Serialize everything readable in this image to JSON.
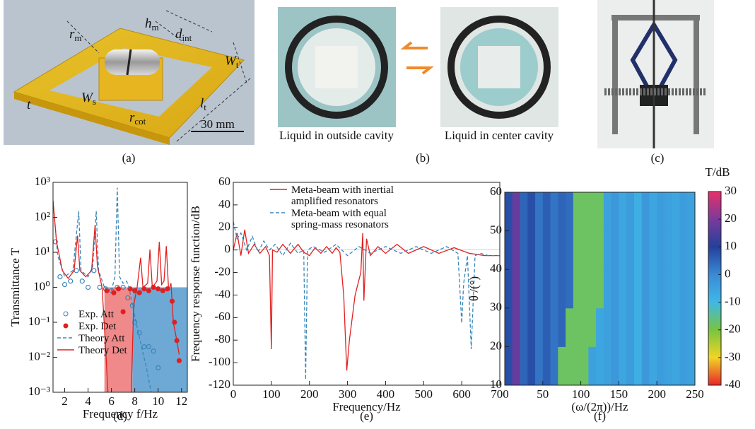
{
  "panels": {
    "a": {
      "caption": "(a)",
      "scale": "30 mm",
      "labels": [
        {
          "text": "r",
          "sub": "m"
        },
        {
          "text": "h",
          "sub": "m"
        },
        {
          "text": "d",
          "sub": "int"
        },
        {
          "text": "W",
          "sub": "t"
        },
        {
          "text": "t",
          "sub": ""
        },
        {
          "text": "W",
          "sub": "s"
        },
        {
          "text": "r",
          "sub": "cot"
        },
        {
          "text": "l",
          "sub": "t"
        }
      ]
    },
    "b": {
      "caption": "(b)",
      "labels": [
        "Liquid in outside cavity",
        "Liquid in center cavity"
      ]
    },
    "c": {
      "caption": "(c)"
    }
  },
  "chart_data": [
    {
      "type": "line",
      "caption": "(d)",
      "xlabel": "Frequency f/Hz",
      "ylabel": "Transmittance T",
      "log_y": true,
      "xlim": [
        1,
        12.5
      ],
      "xticks": [
        2,
        4,
        6,
        8,
        10,
        12
      ],
      "ylim": [
        0.001,
        1000
      ],
      "yticks": [
        {
          "value": 0.001,
          "label": "10⁻³"
        },
        {
          "value": 0.01,
          "label": "10⁻²"
        },
        {
          "value": 0.1,
          "label": "10⁻¹"
        },
        {
          "value": 1,
          "label": "10⁰"
        },
        {
          "value": 10,
          "label": "10¹"
        },
        {
          "value": 100,
          "label": "10²"
        },
        {
          "value": 1000,
          "label": "10³"
        }
      ],
      "legend": "lower left",
      "bands": [
        {
          "color": "#f08a8a",
          "x": [
            5.4,
            7.8
          ],
          "y": [
            0.001,
            1
          ]
        },
        {
          "color": "#6ea9d6",
          "x": [
            7.8,
            12.5
          ],
          "y": [
            0.001,
            1
          ]
        }
      ],
      "series": [
        {
          "name": "Exp. Att",
          "color": "#3a86b8",
          "style": "open-circle",
          "x": [
            1.2,
            1.6,
            2.0,
            2.5,
            3.0,
            3.5,
            4.0,
            4.5,
            5.0,
            5.5,
            6.0,
            6.5,
            7.0,
            7.4,
            7.8,
            8.0,
            8.4,
            8.8,
            9.2,
            9.6,
            10.0
          ],
          "values": [
            20,
            2,
            1.2,
            1.5,
            3,
            1.5,
            1,
            3,
            1,
            0.9,
            0.8,
            1,
            1,
            0.5,
            0.3,
            0.1,
            0.05,
            0.02,
            0.02,
            0.015,
            0.005
          ]
        },
        {
          "name": "Exp. Det",
          "color": "#e02020",
          "style": "filled-circle",
          "x": [
            5.6,
            6.2,
            6.6,
            7.0,
            7.6,
            8.0,
            8.4,
            8.8,
            9.2,
            9.6,
            10.0,
            10.4,
            10.8,
            11.2,
            11.4,
            11.6,
            11.8
          ],
          "values": [
            0.8,
            0.7,
            0.9,
            0.2,
            0.9,
            0.8,
            0.7,
            0.9,
            0.8,
            1,
            0.9,
            0.8,
            0.9,
            0.4,
            0.1,
            0.03,
            0.008
          ]
        },
        {
          "name": "Theory Att",
          "color": "#3a86b8",
          "style": "dashed",
          "x": [
            1.0,
            1.4,
            2.0,
            2.7,
            3.2,
            3.4,
            4.0,
            4.4,
            4.7,
            4.9,
            5.4,
            6.0,
            6.3,
            6.5,
            6.7,
            7.0,
            7.3,
            7.5,
            7.8,
            8.3,
            9.0,
            9.4
          ],
          "values": [
            300,
            8,
            2,
            3,
            150,
            3,
            2,
            4,
            150,
            3,
            1,
            0.8,
            2,
            700,
            2,
            1.3,
            1.5,
            1,
            0.3,
            0.05,
            0.005,
            0.001
          ]
        },
        {
          "name": "Theory Det",
          "color": "#e02020",
          "style": "solid",
          "x": [
            1.0,
            1.3,
            1.8,
            2.3,
            2.8,
            3.1,
            3.3,
            3.8,
            4.3,
            4.6,
            4.8,
            5.2,
            5.5,
            5.7,
            6.7,
            7.7,
            7.9,
            8.2,
            8.5,
            8.7,
            9.1,
            9.3,
            9.5,
            9.9,
            10.1,
            10.3,
            10.5,
            10.7,
            10.9,
            11.1,
            11.3,
            11.6,
            11.8
          ],
          "values": [
            300,
            20,
            3,
            1.8,
            3,
            30,
            3,
            2,
            3,
            60,
            4,
            1,
            0.02,
            0.001,
            null,
            0.001,
            0.3,
            1,
            7,
            1,
            1.3,
            12,
            1,
            1.5,
            20,
            1.2,
            1.5,
            15,
            0.8,
            1.3,
            0.1,
            0.03,
            0.012
          ]
        }
      ]
    },
    {
      "type": "line",
      "caption": "(e)",
      "xlabel": "Frequency/Hz",
      "ylabel": "Frequency response function/dB",
      "log_y": false,
      "xlim": [
        0,
        700
      ],
      "xticks": [
        0,
        100,
        200,
        300,
        400,
        500,
        600,
        700
      ],
      "ylim": [
        -120,
        60
      ],
      "yticks": [
        -120,
        -100,
        -80,
        -60,
        -40,
        -20,
        0,
        20,
        40,
        60
      ],
      "legend": "upper right",
      "series": [
        {
          "name": "Meta-beam with inertial amplified resonators",
          "color": "#e02020",
          "style": "solid",
          "x": [
            0,
            10,
            20,
            30,
            40,
            55,
            70,
            85,
            95,
            100,
            103,
            115,
            130,
            150,
            170,
            185,
            200,
            215,
            230,
            245,
            260,
            270,
            280,
            290,
            298,
            305,
            320,
            335,
            340,
            343,
            350,
            360,
            380,
            400,
            430,
            460,
            500,
            540,
            580,
            620,
            660,
            700
          ],
          "values": [
            0,
            15,
            -5,
            18,
            -3,
            5,
            -3,
            3,
            -5,
            -88,
            0,
            -2,
            5,
            -3,
            5,
            -2,
            -5,
            2,
            -3,
            3,
            -3,
            2,
            -2,
            -40,
            -107,
            -80,
            -40,
            -20,
            15,
            -45,
            10,
            -5,
            3,
            -3,
            5,
            -3,
            3,
            -3,
            2,
            -3,
            -5,
            -5
          ]
        },
        {
          "name": "Meta-beam with equal spring-mass resonators",
          "color": "#3a86b8",
          "style": "dashed",
          "x": [
            0,
            10,
            20,
            35,
            50,
            65,
            80,
            95,
            110,
            130,
            150,
            170,
            185,
            190,
            195,
            210,
            240,
            270,
            300,
            330,
            360,
            400,
            440,
            480,
            520,
            560,
            590,
            600,
            605,
            615,
            625,
            635,
            650,
            670,
            700
          ],
          "values": [
            25,
            10,
            15,
            0,
            12,
            -2,
            8,
            0,
            5,
            -5,
            6,
            -3,
            0,
            -115,
            0,
            3,
            -2,
            5,
            -5,
            3,
            -3,
            3,
            -3,
            3,
            -3,
            3,
            -3,
            -65,
            -30,
            -5,
            -88,
            -5,
            -3,
            -5,
            -5
          ]
        }
      ]
    },
    {
      "type": "heatmap",
      "caption": "(f)",
      "xlabel": "(ω/(2π))/Hz",
      "ylabel": "θ /(°)",
      "colorbar_title": "T/dB",
      "xlim": [
        0,
        250
      ],
      "xticks": [
        50,
        100,
        150,
        200,
        250
      ],
      "ylim": [
        10,
        60
      ],
      "yticks": [
        10,
        20,
        30,
        40,
        50,
        60
      ],
      "clim": [
        -40,
        30
      ],
      "cticks": [
        -40,
        -30,
        -20,
        -10,
        0,
        10,
        20,
        30
      ],
      "colormap": [
        "#e8262a",
        "#f2d524",
        "#78c440",
        "#3fb8e6",
        "#3a8ad6",
        "#23409c",
        "#7a3a9c",
        "#e8306a"
      ],
      "x": [
        0,
        10,
        20,
        30,
        40,
        50,
        60,
        70,
        80,
        90,
        100,
        110,
        120,
        130,
        140,
        150,
        160,
        170,
        180,
        190,
        200,
        210,
        220,
        230,
        240,
        250
      ],
      "y": [
        10,
        20,
        30,
        40,
        50,
        60
      ],
      "z": [
        [
          8,
          18,
          5,
          8,
          3,
          6,
          3,
          -18,
          -18,
          -18,
          -18,
          -5,
          -6,
          -5,
          -3,
          -6,
          -4,
          -8,
          -3,
          -6,
          -4,
          -5,
          -6,
          -4,
          -5
        ],
        [
          8,
          18,
          5,
          8,
          3,
          6,
          3,
          5,
          -18,
          -18,
          -18,
          -18,
          -6,
          -5,
          -3,
          -6,
          -4,
          -8,
          -3,
          -6,
          -4,
          -5,
          -6,
          -4,
          -5
        ],
        [
          8,
          18,
          5,
          8,
          3,
          6,
          3,
          5,
          4,
          -18,
          -18,
          -18,
          -18,
          -5,
          -3,
          -6,
          -4,
          -8,
          -3,
          -6,
          -4,
          -5,
          -6,
          -4,
          -5
        ],
        [
          8,
          18,
          5,
          8,
          3,
          6,
          3,
          5,
          4,
          -18,
          -18,
          -18,
          -18,
          -5,
          -3,
          -6,
          -4,
          -8,
          -3,
          -6,
          -4,
          -5,
          -6,
          -4,
          -5
        ],
        [
          8,
          18,
          5,
          8,
          3,
          6,
          3,
          5,
          4,
          -18,
          -18,
          -18,
          -18,
          -5,
          -3,
          -6,
          -4,
          -8,
          -3,
          -6,
          -4,
          -5,
          -6,
          -4,
          -5
        ]
      ]
    }
  ]
}
